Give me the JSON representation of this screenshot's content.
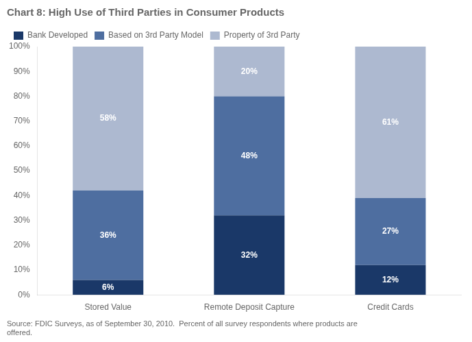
{
  "chart_data": {
    "type": "bar",
    "title": "Chart 8: High Use of Third Parties in Consumer Products",
    "categories": [
      "Stored Value",
      "Remote Deposit Capture",
      "Credit Cards"
    ],
    "series": [
      {
        "name": "Bank Developed",
        "color": "#1a3868",
        "values": [
          6,
          32,
          12
        ],
        "value_labels": [
          "6%",
          "32%",
          "12%"
        ]
      },
      {
        "name": "Based on 3rd Party Model",
        "color": "#4e6ea0",
        "values": [
          36,
          48,
          27
        ],
        "value_labels": [
          "36%",
          "48%",
          "27%"
        ]
      },
      {
        "name": "Property of 3rd Party",
        "color": "#adb9d0",
        "values": [
          58,
          20,
          61
        ],
        "value_labels": [
          "58%",
          "20%",
          "61%"
        ]
      }
    ],
    "ylim": [
      0,
      100
    ],
    "yticks": [
      {
        "value": 0,
        "label": "0%"
      },
      {
        "value": 10,
        "label": "10%"
      },
      {
        "value": 20,
        "label": "20%"
      },
      {
        "value": 30,
        "label": "30%"
      },
      {
        "value": 40,
        "label": "40%"
      },
      {
        "value": 50,
        "label": "50%"
      },
      {
        "value": 60,
        "label": "60%"
      },
      {
        "value": 70,
        "label": "70%"
      },
      {
        "value": 80,
        "label": "80%"
      },
      {
        "value": 90,
        "label": "90%"
      },
      {
        "value": 100,
        "label": "100%"
      }
    ],
    "stacked": true,
    "grid": false,
    "legend": "upper left",
    "data_labels": true,
    "annotations": [
      "Source: FDIC Surveys, as of September 30, 2010.  Percent of all survey respondents where products are\noffered."
    ]
  }
}
